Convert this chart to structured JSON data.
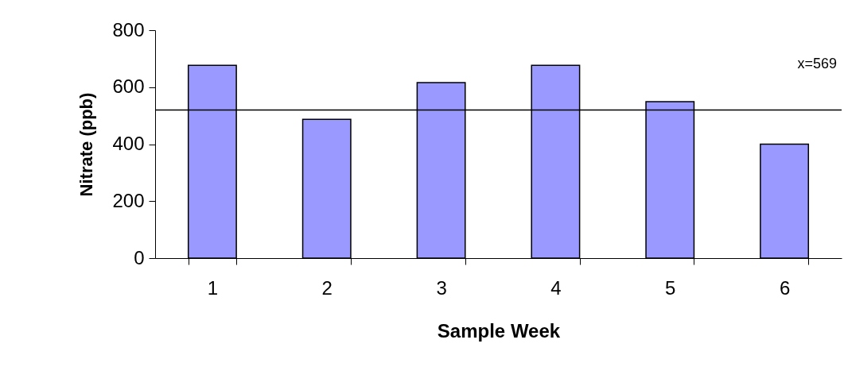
{
  "chart_data": {
    "type": "bar",
    "xlabel": "Sample Week",
    "ylabel": "Nitrate (ppb)",
    "categories": [
      "1",
      "2",
      "3",
      "4",
      "5",
      "6"
    ],
    "values": [
      677,
      487,
      616,
      677,
      549,
      400
    ],
    "color": "#9999ff",
    "ylim": [
      0,
      800
    ],
    "yticks": [
      0,
      200,
      400,
      600,
      800
    ],
    "grid": false,
    "ref_lines": [
      {
        "axis": "y",
        "value": 520,
        "color": "#000000"
      }
    ],
    "annotations": [
      "x=569"
    ]
  }
}
